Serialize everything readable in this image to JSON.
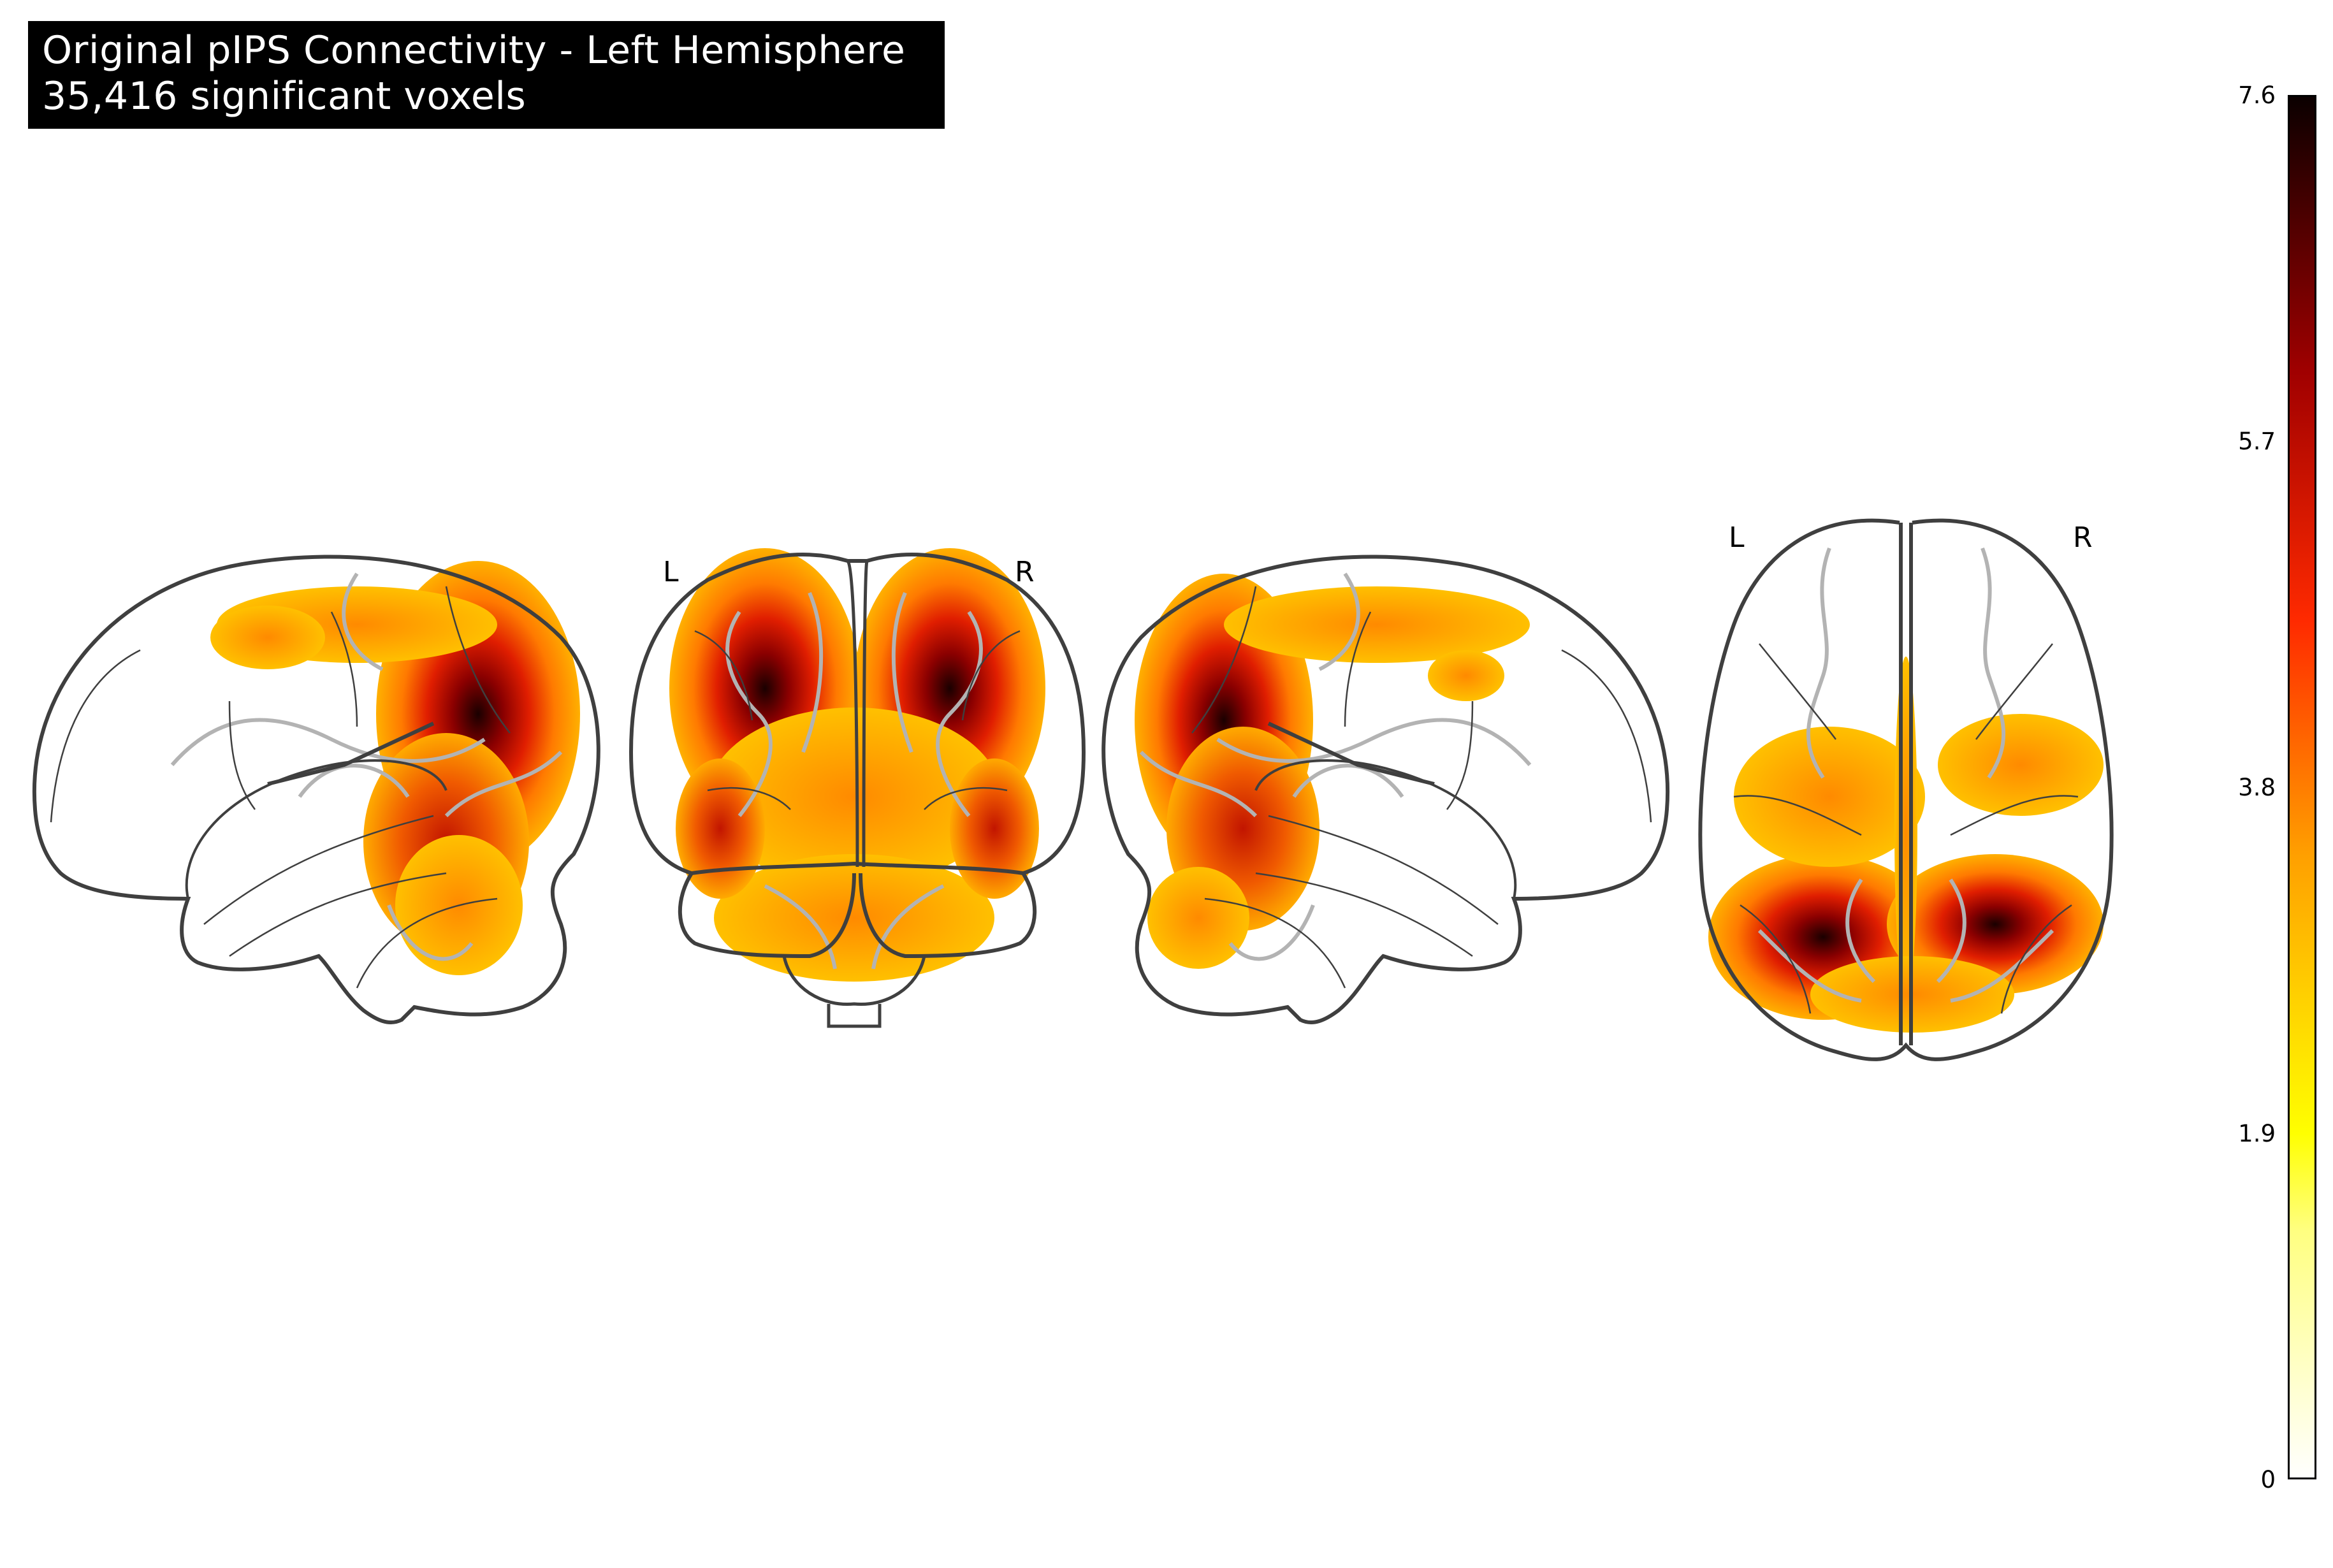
{
  "title": {
    "line1": "Original pIPS Connectivity - Left Hemisphere",
    "line2": "35,416 significant voxels"
  },
  "views": {
    "coronal": {
      "left_label": "L",
      "right_label": "R"
    },
    "axial": {
      "left_label": "L",
      "right_label": "R"
    }
  },
  "colorbar": {
    "colormap": "cold_hot-like hot (white-yellow-orange-red-black)",
    "ticks": [
      "7.6",
      "5.7",
      "3.8",
      "1.9",
      "0"
    ],
    "min": 0,
    "max": 7.6
  },
  "colors": {
    "outline": "#3f3f3f",
    "sulci": "#b3b3b3",
    "title_bg": "#000000",
    "title_fg": "#ffffff"
  }
}
